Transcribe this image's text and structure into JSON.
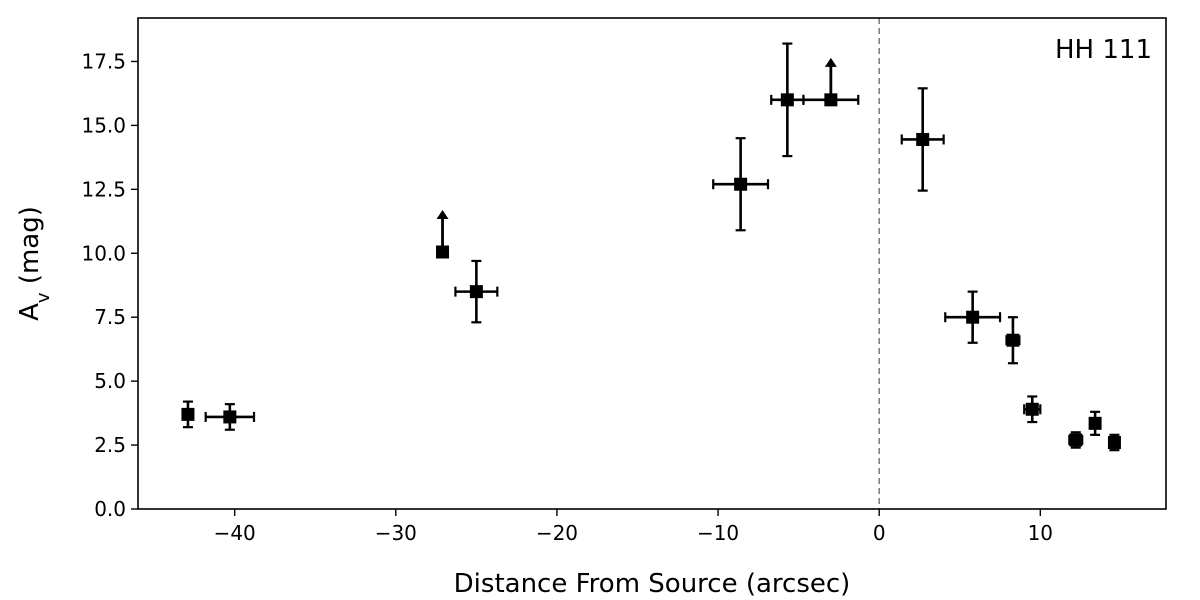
{
  "chart_data": {
    "type": "scatter",
    "xlabel": "Distance From Source (arcsec)",
    "ylabel_main": "A",
    "ylabel_sub": "v",
    "ylabel_unit": " (mag)",
    "annotation": "HH 111",
    "xlim": [
      -46,
      17.8
    ],
    "ylim": [
      0,
      19.2
    ],
    "xticks": [
      -40,
      -30,
      -20,
      -10,
      0,
      10
    ],
    "xtick_labels": [
      "−40",
      "−30",
      "−20",
      "−10",
      "0",
      "10"
    ],
    "yticks": [
      0,
      2.5,
      5,
      7.5,
      10,
      12.5,
      15,
      17.5
    ],
    "ytick_labels": [
      "0.0",
      "2.5",
      "5.0",
      "7.5",
      "10.0",
      "12.5",
      "15.0",
      "17.5"
    ],
    "source_line_x": 0,
    "grid": false,
    "marker": "square",
    "color": "#000000",
    "source_line_color": "#808080",
    "points": [
      {
        "x": -42.9,
        "y": 3.7,
        "xerr": 0,
        "yerr": 0.5,
        "lower_limit": false
      },
      {
        "x": -40.3,
        "y": 3.6,
        "xerr": 1.5,
        "yerr": 0.5,
        "lower_limit": false
      },
      {
        "x": -27.1,
        "y": 10.05,
        "xerr": 0,
        "yerr": 0,
        "lower_limit": true
      },
      {
        "x": -25.0,
        "y": 8.5,
        "xerr": 1.3,
        "yerr": 1.2,
        "lower_limit": false
      },
      {
        "x": -8.6,
        "y": 12.7,
        "xerr": 1.7,
        "yerr": 1.8,
        "lower_limit": false
      },
      {
        "x": -5.7,
        "y": 16.0,
        "xerr": 1.0,
        "yerr": 2.2,
        "lower_limit": false
      },
      {
        "x": -3.0,
        "y": 16.0,
        "xerr": 1.7,
        "yerr": 0,
        "lower_limit": true
      },
      {
        "x": 2.7,
        "y": 14.45,
        "xerr": 1.3,
        "yerr": 2.0,
        "lower_limit": false
      },
      {
        "x": 5.8,
        "y": 7.5,
        "xerr": 1.7,
        "yerr": 1.0,
        "lower_limit": false
      },
      {
        "x": 8.3,
        "y": 6.6,
        "xerr": 0.4,
        "yerr": 0.9,
        "lower_limit": false
      },
      {
        "x": 9.5,
        "y": 3.9,
        "xerr": 0.5,
        "yerr": 0.5,
        "lower_limit": false
      },
      {
        "x": 12.2,
        "y": 2.7,
        "xerr": 0.4,
        "yerr": 0.3,
        "lower_limit": false
      },
      {
        "x": 13.4,
        "y": 3.35,
        "xerr": 0.2,
        "yerr": 0.45,
        "lower_limit": false
      },
      {
        "x": 14.6,
        "y": 2.6,
        "xerr": 0.2,
        "yerr": 0.3,
        "lower_limit": false
      }
    ]
  }
}
